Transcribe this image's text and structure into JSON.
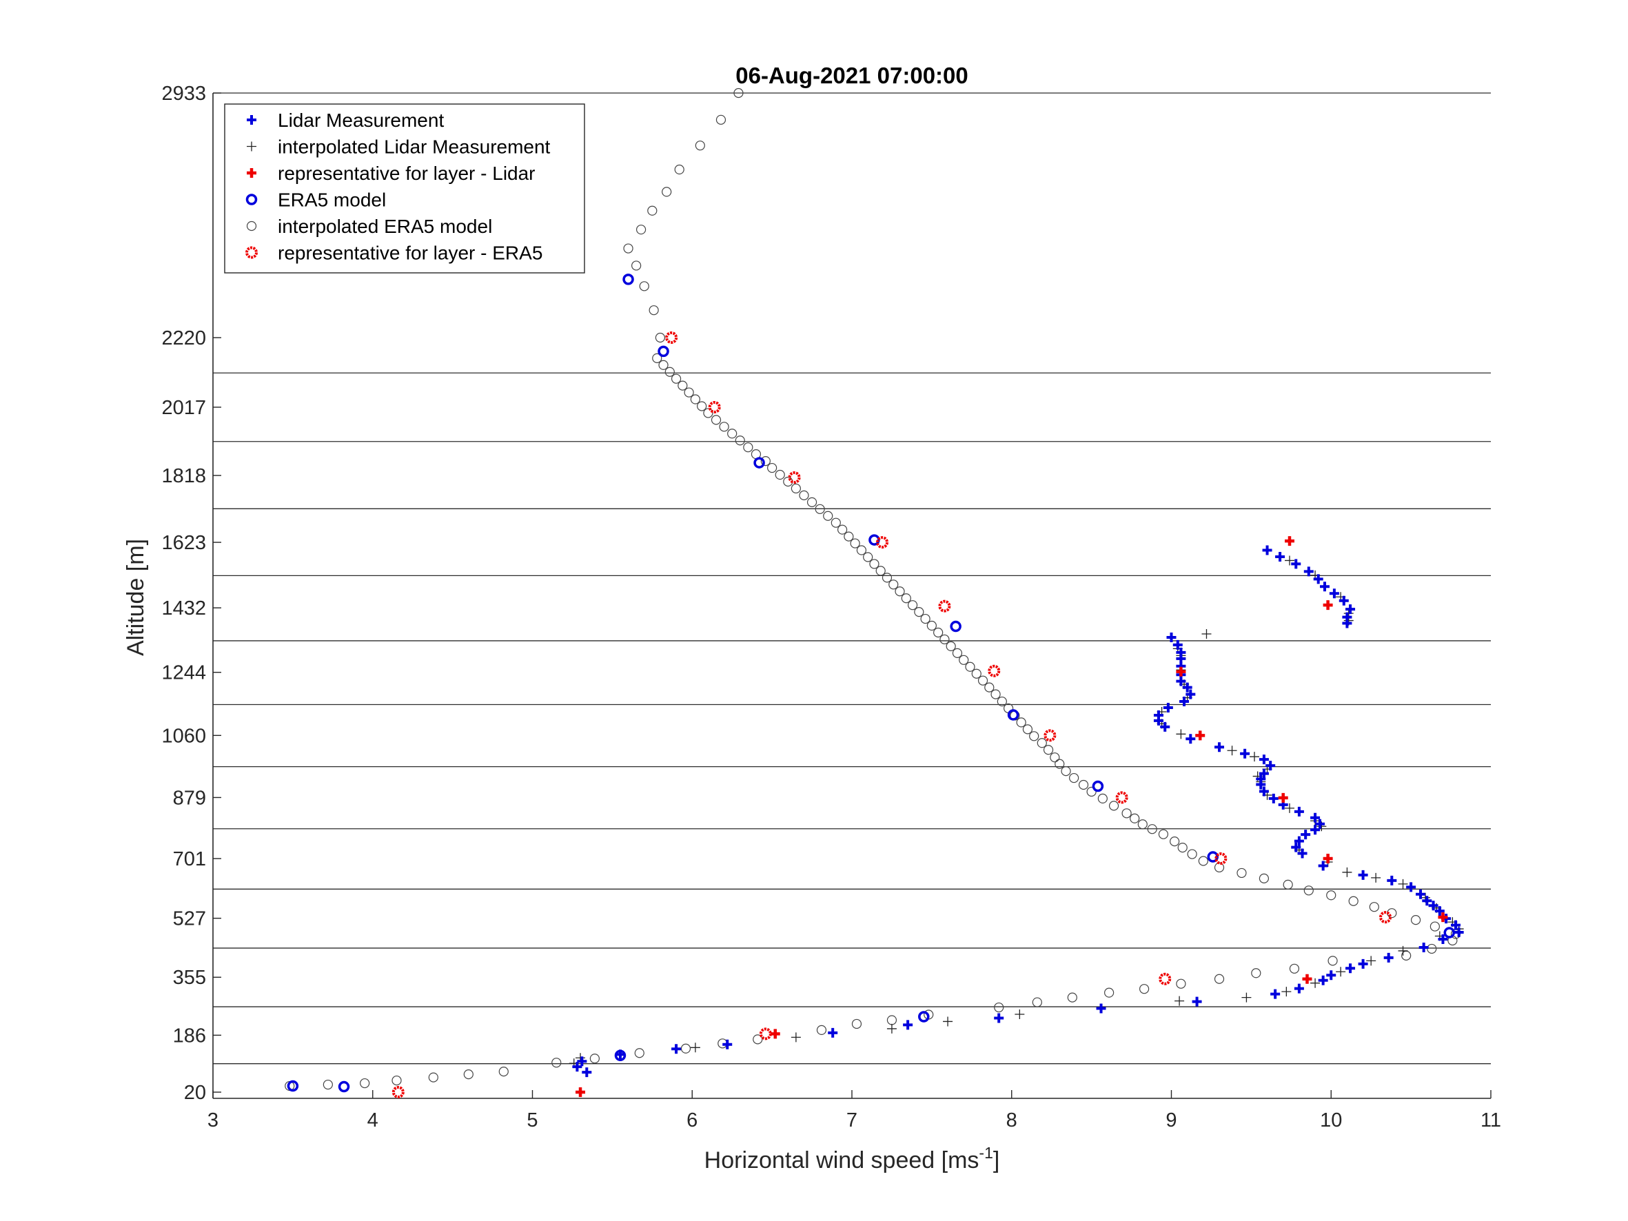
{
  "chart_data": {
    "type": "scatter",
    "title": "06-Aug-2021 07:00:00",
    "xlabel": {
      "base": "Horizontal wind speed [ms",
      "superscript": "-1",
      "suffix": "]"
    },
    "ylabel": "Altitude [m]",
    "xlim": [
      3,
      11
    ],
    "xticks": [
      3,
      4,
      5,
      6,
      7,
      8,
      9,
      10,
      11
    ],
    "yticks": [
      20,
      186,
      355,
      527,
      701,
      879,
      1060,
      1244,
      1432,
      1623,
      1818,
      2017,
      2220,
      2933
    ],
    "grid": "horizontal",
    "legend_position": "top-left",
    "colors": {
      "lidar": "#0000dd",
      "interp": "#222222",
      "repr": "#ee0000",
      "era5": "#0000dd",
      "era5_interp": "#444444"
    },
    "layer_boundaries": [
      103,
      269,
      440,
      612,
      788,
      969,
      1150,
      1336,
      1526,
      1721,
      1917,
      2117
    ],
    "series": [
      {
        "name": "Lidar Measurement",
        "marker": "plus-bold",
        "points": [
          [
            5.28,
            94
          ],
          [
            5.31,
            110
          ],
          [
            5.34,
            78
          ],
          [
            5.55,
            130
          ],
          [
            5.9,
            146
          ],
          [
            6.22,
            159
          ],
          [
            6.88,
            193
          ],
          [
            7.35,
            216
          ],
          [
            7.92,
            236
          ],
          [
            8.56,
            264
          ],
          [
            9.16,
            284
          ],
          [
            9.65,
            306
          ],
          [
            9.8,
            322
          ],
          [
            9.95,
            346
          ],
          [
            10.0,
            361
          ],
          [
            10.12,
            381
          ],
          [
            10.2,
            394
          ],
          [
            10.36,
            412
          ],
          [
            10.58,
            442
          ],
          [
            10.7,
            466
          ],
          [
            10.8,
            486
          ],
          [
            10.78,
            507
          ],
          [
            10.72,
            526
          ],
          [
            10.68,
            548
          ],
          [
            10.64,
            564
          ],
          [
            10.6,
            578
          ],
          [
            10.56,
            597
          ],
          [
            10.5,
            618
          ],
          [
            10.38,
            637
          ],
          [
            10.2,
            653
          ],
          [
            9.95,
            680
          ],
          [
            9.82,
            716
          ],
          [
            9.78,
            734
          ],
          [
            9.8,
            752
          ],
          [
            9.84,
            771
          ],
          [
            9.9,
            785
          ],
          [
            9.93,
            802
          ],
          [
            9.9,
            820
          ],
          [
            9.8,
            838
          ],
          [
            9.7,
            858
          ],
          [
            9.64,
            876
          ],
          [
            9.58,
            897
          ],
          [
            9.56,
            917
          ],
          [
            9.56,
            933
          ],
          [
            9.58,
            949
          ],
          [
            9.62,
            972
          ],
          [
            9.58,
            990
          ],
          [
            9.46,
            1007
          ],
          [
            9.3,
            1026
          ],
          [
            9.12,
            1050
          ],
          [
            8.96,
            1085
          ],
          [
            8.92,
            1103
          ],
          [
            8.92,
            1119
          ],
          [
            8.98,
            1141
          ],
          [
            9.08,
            1159
          ],
          [
            9.12,
            1180
          ],
          [
            9.1,
            1200
          ],
          [
            9.06,
            1218
          ],
          [
            9.06,
            1237
          ],
          [
            9.06,
            1262
          ],
          [
            9.06,
            1284
          ],
          [
            9.06,
            1302
          ],
          [
            9.04,
            1324
          ],
          [
            9.0,
            1346
          ],
          [
            10.1,
            1387
          ],
          [
            10.1,
            1405
          ],
          [
            10.12,
            1428
          ],
          [
            10.08,
            1453
          ],
          [
            10.02,
            1474
          ],
          [
            9.96,
            1494
          ],
          [
            9.92,
            1516
          ],
          [
            9.86,
            1538
          ],
          [
            9.78,
            1560
          ],
          [
            9.68,
            1581
          ],
          [
            9.6,
            1600
          ]
        ]
      },
      {
        "name": "interpolated Lidar Measurement",
        "marker": "plus-thin",
        "points": [
          [
            5.26,
            104
          ],
          [
            5.3,
            120
          ],
          [
            6.02,
            150
          ],
          [
            6.65,
            180
          ],
          [
            7.25,
            205
          ],
          [
            7.6,
            226
          ],
          [
            8.05,
            247
          ],
          [
            9.05,
            286
          ],
          [
            9.47,
            296
          ],
          [
            9.72,
            313
          ],
          [
            9.9,
            338
          ],
          [
            10.06,
            371
          ],
          [
            10.25,
            403
          ],
          [
            10.45,
            432
          ],
          [
            10.68,
            475
          ],
          [
            10.8,
            496
          ],
          [
            10.76,
            516
          ],
          [
            10.66,
            557
          ],
          [
            10.59,
            587
          ],
          [
            10.45,
            627
          ],
          [
            10.28,
            645
          ],
          [
            10.1,
            661
          ],
          [
            9.8,
            726
          ],
          [
            9.98,
            691
          ],
          [
            9.94,
            795
          ],
          [
            9.9,
            811
          ],
          [
            9.74,
            848
          ],
          [
            9.6,
            886
          ],
          [
            9.56,
            925
          ],
          [
            9.54,
            941
          ],
          [
            9.6,
            962
          ],
          [
            9.52,
            998
          ],
          [
            9.38,
            1016
          ],
          [
            9.06,
            1064
          ],
          [
            8.94,
            1094
          ],
          [
            8.94,
            1129
          ],
          [
            9.1,
            1170
          ],
          [
            9.08,
            1209
          ],
          [
            9.06,
            1251
          ],
          [
            9.06,
            1293
          ],
          [
            9.04,
            1313
          ],
          [
            9.22,
            1356
          ],
          [
            10.11,
            1395
          ],
          [
            10.11,
            1416
          ],
          [
            10.06,
            1464
          ],
          [
            9.9,
            1527
          ],
          [
            9.74,
            1570
          ]
        ]
      },
      {
        "name": "representative for layer - Lidar",
        "marker": "plus-red",
        "points": [
          [
            5.3,
            20
          ],
          [
            6.52,
            190
          ],
          [
            9.85,
            350
          ],
          [
            10.7,
            530
          ],
          [
            9.98,
            701
          ],
          [
            9.7,
            878
          ],
          [
            9.18,
            1060
          ],
          [
            9.06,
            1246
          ],
          [
            9.98,
            1440
          ],
          [
            9.74,
            1627
          ]
        ]
      },
      {
        "name": "ERA5 model",
        "marker": "circle-blue",
        "points": [
          [
            3.5,
            38
          ],
          [
            3.82,
            36
          ],
          [
            5.55,
            127
          ],
          [
            7.45,
            240
          ],
          [
            10.74,
            485
          ],
          [
            9.26,
            706
          ],
          [
            8.54,
            912
          ],
          [
            8.01,
            1120
          ],
          [
            7.65,
            1378
          ],
          [
            7.14,
            1630
          ],
          [
            6.42,
            1855
          ],
          [
            5.82,
            2180
          ],
          [
            5.6,
            2390
          ]
        ]
      },
      {
        "name": "interpolated ERA5 model",
        "marker": "circle-gray",
        "points": [
          [
            3.48,
            38
          ],
          [
            3.72,
            42
          ],
          [
            3.95,
            46
          ],
          [
            4.15,
            54
          ],
          [
            4.38,
            63
          ],
          [
            4.6,
            72
          ],
          [
            4.82,
            80
          ],
          [
            5.15,
            106
          ],
          [
            5.39,
            118
          ],
          [
            5.67,
            134
          ],
          [
            5.96,
            147
          ],
          [
            6.19,
            162
          ],
          [
            6.41,
            174
          ],
          [
            6.81,
            201
          ],
          [
            7.03,
            219
          ],
          [
            7.25,
            230
          ],
          [
            7.48,
            246
          ],
          [
            7.92,
            267
          ],
          [
            8.16,
            282
          ],
          [
            8.38,
            296
          ],
          [
            8.61,
            310
          ],
          [
            8.83,
            321
          ],
          [
            9.06,
            336
          ],
          [
            9.3,
            350
          ],
          [
            9.53,
            367
          ],
          [
            9.77,
            380
          ],
          [
            10.01,
            403
          ],
          [
            10.47,
            418
          ],
          [
            10.63,
            438
          ],
          [
            10.76,
            462
          ],
          [
            10.78,
            481
          ],
          [
            10.65,
            503
          ],
          [
            10.53,
            522
          ],
          [
            10.38,
            542
          ],
          [
            10.27,
            560
          ],
          [
            10.14,
            577
          ],
          [
            10.0,
            594
          ],
          [
            9.86,
            608
          ],
          [
            9.73,
            625
          ],
          [
            9.58,
            643
          ],
          [
            9.44,
            659
          ],
          [
            9.3,
            675
          ],
          [
            9.2,
            694
          ],
          [
            9.13,
            714
          ],
          [
            9.07,
            733
          ],
          [
            9.02,
            751
          ],
          [
            8.95,
            772
          ],
          [
            8.88,
            787
          ],
          [
            8.82,
            801
          ],
          [
            8.77,
            818
          ],
          [
            8.72,
            833
          ],
          [
            8.64,
            855
          ],
          [
            8.57,
            876
          ],
          [
            8.5,
            896
          ],
          [
            8.45,
            916
          ],
          [
            8.39,
            936
          ],
          [
            8.34,
            956
          ],
          [
            8.3,
            977
          ],
          [
            8.27,
            996
          ],
          [
            8.23,
            1018
          ],
          [
            8.19,
            1038
          ],
          [
            8.14,
            1058
          ],
          [
            8.1,
            1078
          ],
          [
            8.06,
            1098
          ],
          [
            8.02,
            1118
          ],
          [
            7.98,
            1139
          ],
          [
            7.94,
            1159
          ],
          [
            7.9,
            1180
          ],
          [
            7.86,
            1200
          ],
          [
            7.82,
            1220
          ],
          [
            7.78,
            1240
          ],
          [
            7.74,
            1260
          ],
          [
            7.7,
            1280
          ],
          [
            7.66,
            1300
          ],
          [
            7.62,
            1320
          ],
          [
            7.58,
            1340
          ],
          [
            7.54,
            1360
          ],
          [
            7.5,
            1380
          ],
          [
            7.46,
            1400
          ],
          [
            7.42,
            1420
          ],
          [
            7.38,
            1440
          ],
          [
            7.34,
            1460
          ],
          [
            7.3,
            1480
          ],
          [
            7.26,
            1500
          ],
          [
            7.22,
            1520
          ],
          [
            7.18,
            1540
          ],
          [
            7.14,
            1560
          ],
          [
            7.1,
            1580
          ],
          [
            7.06,
            1600
          ],
          [
            7.02,
            1620
          ],
          [
            6.98,
            1640
          ],
          [
            6.94,
            1660
          ],
          [
            6.9,
            1680
          ],
          [
            6.85,
            1700
          ],
          [
            6.8,
            1720
          ],
          [
            6.75,
            1740
          ],
          [
            6.7,
            1760
          ],
          [
            6.65,
            1780
          ],
          [
            6.6,
            1800
          ],
          [
            6.55,
            1820
          ],
          [
            6.5,
            1840
          ],
          [
            6.46,
            1860
          ],
          [
            6.4,
            1880
          ],
          [
            6.35,
            1900
          ],
          [
            6.3,
            1920
          ],
          [
            6.25,
            1940
          ],
          [
            6.2,
            1960
          ],
          [
            6.15,
            1980
          ],
          [
            6.1,
            2000
          ],
          [
            6.06,
            2020
          ],
          [
            6.02,
            2040
          ],
          [
            5.98,
            2060
          ],
          [
            5.94,
            2080
          ],
          [
            5.9,
            2100
          ],
          [
            5.86,
            2120
          ],
          [
            5.82,
            2140
          ],
          [
            5.78,
            2160
          ],
          [
            5.8,
            2220
          ],
          [
            5.76,
            2300
          ],
          [
            5.7,
            2370
          ],
          [
            5.65,
            2430
          ],
          [
            5.6,
            2480
          ],
          [
            5.68,
            2535
          ],
          [
            5.75,
            2590
          ],
          [
            5.84,
            2645
          ],
          [
            5.92,
            2710
          ],
          [
            6.05,
            2780
          ],
          [
            6.18,
            2855
          ],
          [
            6.29,
            2933
          ]
        ]
      },
      {
        "name": "representative for layer - ERA5",
        "marker": "circle-red",
        "points": [
          [
            4.16,
            20
          ],
          [
            6.46,
            190
          ],
          [
            8.96,
            350
          ],
          [
            10.34,
            530
          ],
          [
            9.31,
            701
          ],
          [
            8.69,
            879
          ],
          [
            8.24,
            1060
          ],
          [
            7.89,
            1248
          ],
          [
            7.58,
            1437
          ],
          [
            7.19,
            1623
          ],
          [
            6.64,
            1812
          ],
          [
            6.14,
            2017
          ],
          [
            5.87,
            2220
          ]
        ]
      }
    ]
  }
}
